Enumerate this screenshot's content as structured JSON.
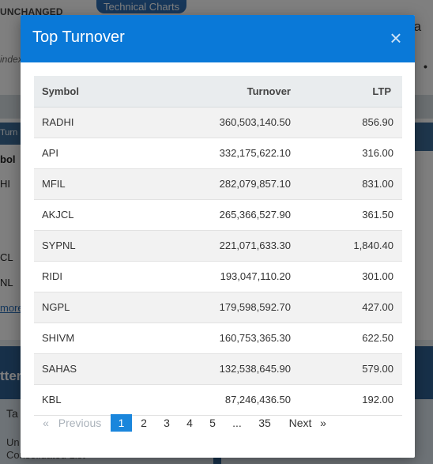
{
  "background": {
    "unchanged_label": "UNCHANGED",
    "technical_charts_button": "Technical Charts",
    "right_heading_fragment": "on a",
    "index_fragment": "index",
    "turnover_tab_fragment": "Turn",
    "symbol_fragment": "bol",
    "row_fragments": [
      "HI",
      "",
      "CL",
      "NL"
    ],
    "more_link_fragment": "more",
    "section_fragment": "tter",
    "tab_fragment": "Ta",
    "list_line1_fragment": "Un",
    "list_line2_fragment": "Consolidated List"
  },
  "modal": {
    "title": "Top Turnover",
    "close_symbol": "×",
    "accent_color": "#0a79d8"
  },
  "table": {
    "headers": {
      "symbol": "Symbol",
      "turnover": "Turnover",
      "ltp": "LTP"
    },
    "rows": [
      {
        "symbol": "RADHI",
        "turnover": "360,503,140.50",
        "ltp": "856.90"
      },
      {
        "symbol": "API",
        "turnover": "332,175,622.10",
        "ltp": "316.00"
      },
      {
        "symbol": "MFIL",
        "turnover": "282,079,857.10",
        "ltp": "831.00"
      },
      {
        "symbol": "AKJCL",
        "turnover": "265,366,527.90",
        "ltp": "361.50"
      },
      {
        "symbol": "SYPNL",
        "turnover": "221,071,633.30",
        "ltp": "1,840.40"
      },
      {
        "symbol": "RIDI",
        "turnover": "193,047,110.20",
        "ltp": "301.00"
      },
      {
        "symbol": "NGPL",
        "turnover": "179,598,592.70",
        "ltp": "427.00"
      },
      {
        "symbol": "SHIVM",
        "turnover": "160,753,365.30",
        "ltp": "622.50"
      },
      {
        "symbol": "SAHAS",
        "turnover": "132,538,645.90",
        "ltp": "579.00"
      },
      {
        "symbol": "KBL",
        "turnover": "87,246,436.50",
        "ltp": "192.00"
      }
    ]
  },
  "pagination": {
    "prev_arrow": "«",
    "prev_label": "Previous",
    "pages": [
      "1",
      "2",
      "3",
      "4",
      "5",
      "...",
      "35"
    ],
    "active_page": "1",
    "next_label": "Next",
    "next_arrow": "»"
  }
}
